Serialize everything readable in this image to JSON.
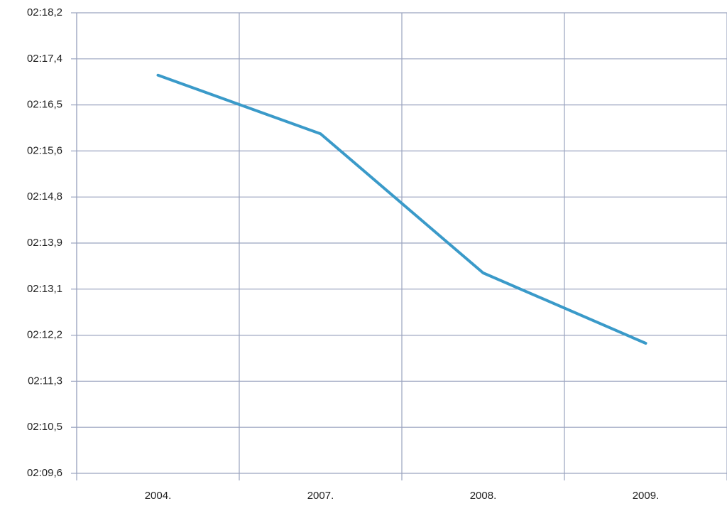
{
  "chart_data": {
    "type": "line",
    "categories": [
      "2004.",
      "2007.",
      "2008.",
      "2009."
    ],
    "values": [
      137.07,
      135.97,
      133.36,
      132.04
    ],
    "color": "#3a9ac9",
    "ylim": [
      129.6,
      138.24
    ],
    "yticks": [
      {
        "value": 129.6,
        "label": "02:09,6"
      },
      {
        "value": 130.464,
        "label": "02:10,5"
      },
      {
        "value": 131.328,
        "label": "02:11,3"
      },
      {
        "value": 132.192,
        "label": "02:12,2"
      },
      {
        "value": 133.056,
        "label": "02:13,1"
      },
      {
        "value": 133.92,
        "label": "02:13,9"
      },
      {
        "value": 134.784,
        "label": "02:14,8"
      },
      {
        "value": 135.648,
        "label": "02:15,6"
      },
      {
        "value": 136.512,
        "label": "02:16,5"
      },
      {
        "value": 137.376,
        "label": "02:17,4"
      },
      {
        "value": 138.24,
        "label": "02:18,2"
      }
    ],
    "grid": true
  }
}
